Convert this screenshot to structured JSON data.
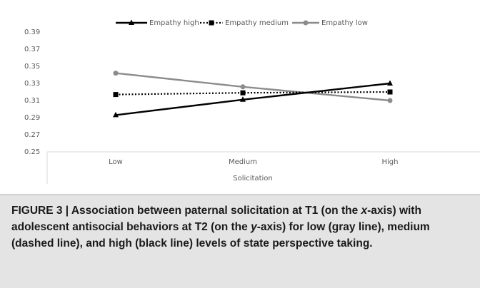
{
  "chart_data": {
    "type": "line",
    "categories": [
      "Low",
      "Medium",
      "High"
    ],
    "xlabel": "Solicitation",
    "ylabel": "",
    "ylim": [
      0.25,
      0.4
    ],
    "yticks": [
      "0.25",
      "0.27",
      "0.29",
      "0.31",
      "0.33",
      "0.35",
      "0.37",
      "0.39"
    ],
    "grid": false,
    "legend_position": "top",
    "series": [
      {
        "name": "Empathy high",
        "values": [
          0.293,
          0.311,
          0.33
        ],
        "color": "#000000",
        "style": "solid",
        "marker": "triangle"
      },
      {
        "name": "Empathy medium",
        "values": [
          0.317,
          0.319,
          0.32
        ],
        "color": "#000000",
        "style": "dotted",
        "marker": "square"
      },
      {
        "name": "Empathy low",
        "values": [
          0.342,
          0.326,
          0.31
        ],
        "color": "#8c8c8c",
        "style": "solid",
        "marker": "circle"
      }
    ]
  },
  "caption": {
    "lead": "FIGURE 3 | Association between paternal solicitation at T1 (on the",
    "x_italic": "x",
    "part2": "-axis) with adolescent antisocial behaviors at T2 (on the",
    "y_italic": "y",
    "part3": "-axis) for low (gray line), medium (dashed line), and high (black line) levels of state perspective taking."
  }
}
